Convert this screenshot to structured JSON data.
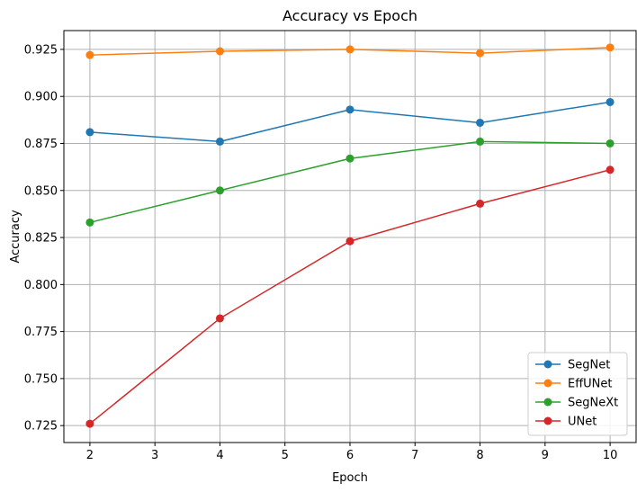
{
  "chart_data": {
    "type": "line",
    "title": "Accuracy vs Epoch",
    "xlabel": "Epoch",
    "ylabel": "Accuracy",
    "x": [
      2,
      4,
      6,
      8,
      10
    ],
    "xlim": [
      1.6,
      10.4
    ],
    "ylim": [
      0.716,
      0.935
    ],
    "xticks": [
      2,
      3,
      4,
      5,
      6,
      7,
      8,
      9,
      10
    ],
    "yticks": [
      0.725,
      0.75,
      0.775,
      0.8,
      0.825,
      0.85,
      0.875,
      0.9,
      0.925
    ],
    "ytick_labels": [
      "0.725",
      "0.750",
      "0.775",
      "0.800",
      "0.825",
      "0.850",
      "0.875",
      "0.900",
      "0.925"
    ],
    "grid": true,
    "legend_position": "bottom-right",
    "series": [
      {
        "name": "SegNet",
        "color": "#1f77b4",
        "values": [
          0.881,
          0.876,
          0.893,
          0.886,
          0.897
        ]
      },
      {
        "name": "EffUNet",
        "color": "#ff7f0e",
        "values": [
          0.922,
          0.924,
          0.925,
          0.923,
          0.926
        ]
      },
      {
        "name": "SegNeXt",
        "color": "#2ca02c",
        "values": [
          0.833,
          0.85,
          0.867,
          0.876,
          0.875
        ]
      },
      {
        "name": "UNet",
        "color": "#d62728",
        "values": [
          0.726,
          0.782,
          0.823,
          0.843,
          0.861
        ]
      }
    ]
  }
}
